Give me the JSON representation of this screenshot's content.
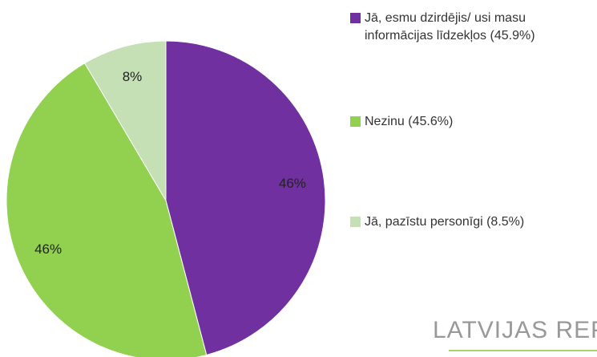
{
  "chart_data": {
    "type": "pie",
    "categories": [
      "Jā, esmu dzirdējis/ usi masu informācijas līdzekļos (45.9%)",
      "Nezinu (45.6%)",
      "Jā, pazīstu personīgi (8.5%)"
    ],
    "values": [
      45.9,
      45.6,
      8.5
    ],
    "value_labels": [
      "46%",
      "46%",
      "8%"
    ],
    "colors": [
      "#7030a0",
      "#92d050",
      "#c5e0b4"
    ],
    "watermark": "LATVIJAS REPU"
  }
}
